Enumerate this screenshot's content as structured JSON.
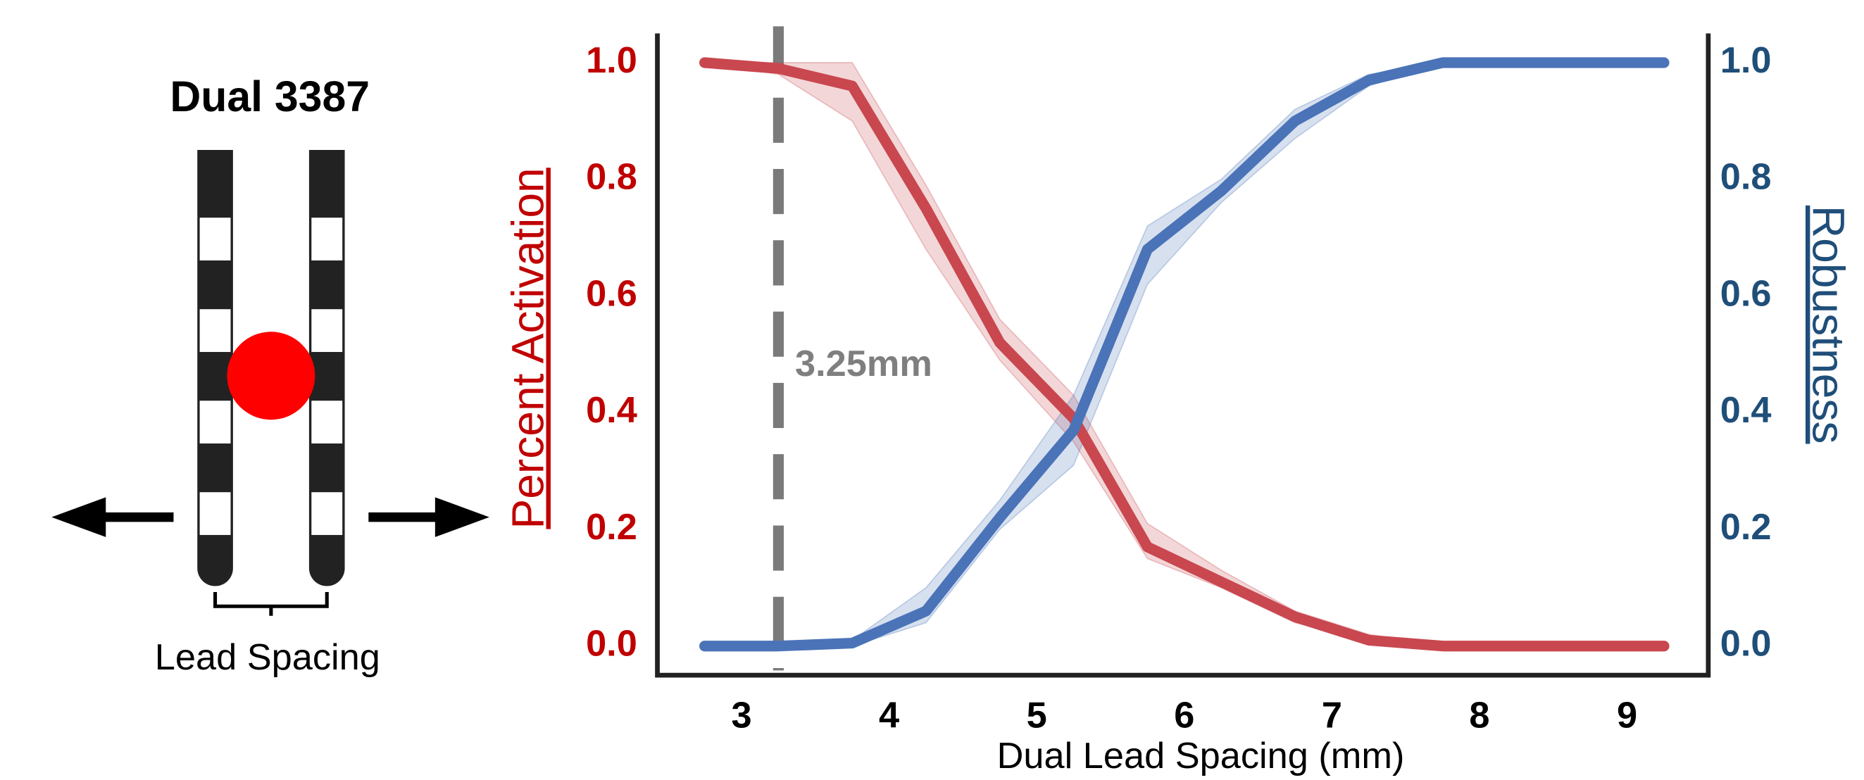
{
  "diagram": {
    "title": "Dual 3387",
    "label": "Lead Spacing"
  },
  "chart_data": {
    "type": "line",
    "xlabel": "Dual Lead Spacing (mm)",
    "ylabel": "Percent Activation",
    "y2label": "Robustness",
    "x": [
      2.75,
      3.25,
      3.75,
      4.25,
      4.75,
      5.25,
      5.75,
      6.25,
      6.75,
      7.25,
      7.75,
      8.25,
      8.75,
      9.25
    ],
    "series": [
      {
        "name": "Percent Activation",
        "color": "#c9474f",
        "values": [
          1.0,
          0.99,
          0.96,
          0.75,
          0.52,
          0.39,
          0.17,
          0.11,
          0.05,
          0.01,
          0.0,
          0.0,
          0.0,
          0.0
        ],
        "lower": [
          1.0,
          0.98,
          0.9,
          0.68,
          0.49,
          0.35,
          0.15,
          0.1,
          0.04,
          0.01,
          0.0,
          0.0,
          0.0,
          0.0
        ],
        "upper": [
          1.0,
          1.0,
          1.0,
          0.79,
          0.56,
          0.43,
          0.21,
          0.13,
          0.06,
          0.02,
          0.0,
          0.0,
          0.0,
          0.0
        ]
      },
      {
        "name": "Robustness",
        "color": "#4a73b8",
        "axis": "y2",
        "values": [
          0.0,
          0.0,
          0.005,
          0.06,
          0.22,
          0.37,
          0.68,
          0.78,
          0.9,
          0.97,
          1.0,
          1.0,
          1.0,
          1.0
        ],
        "lower": [
          0.0,
          0.0,
          0.0,
          0.04,
          0.2,
          0.31,
          0.62,
          0.76,
          0.87,
          0.96,
          1.0,
          1.0,
          1.0,
          1.0
        ],
        "upper": [
          0.0,
          0.0,
          0.01,
          0.1,
          0.25,
          0.43,
          0.72,
          0.8,
          0.92,
          0.98,
          1.0,
          1.0,
          1.0,
          1.0
        ]
      }
    ],
    "xlim": [
      2.43,
      9.55
    ],
    "xticks": [
      3,
      4,
      5,
      6,
      7,
      8,
      9
    ],
    "ylim": [
      -0.05,
      1.05
    ],
    "yticks": [
      {
        "value": 0,
        "label": "0.0"
      },
      0.2,
      0.4,
      0.6,
      0.8,
      {
        "value": 1,
        "label": "1.0"
      }
    ],
    "y2lim": [
      -0.05,
      1.05
    ],
    "y2ticks": [
      {
        "value": 0,
        "label": "0.0"
      },
      0.2,
      0.4,
      0.6,
      0.8,
      {
        "value": 1,
        "label": "1.0"
      }
    ],
    "vline": 3.25,
    "vline_label": "3.25mm"
  }
}
